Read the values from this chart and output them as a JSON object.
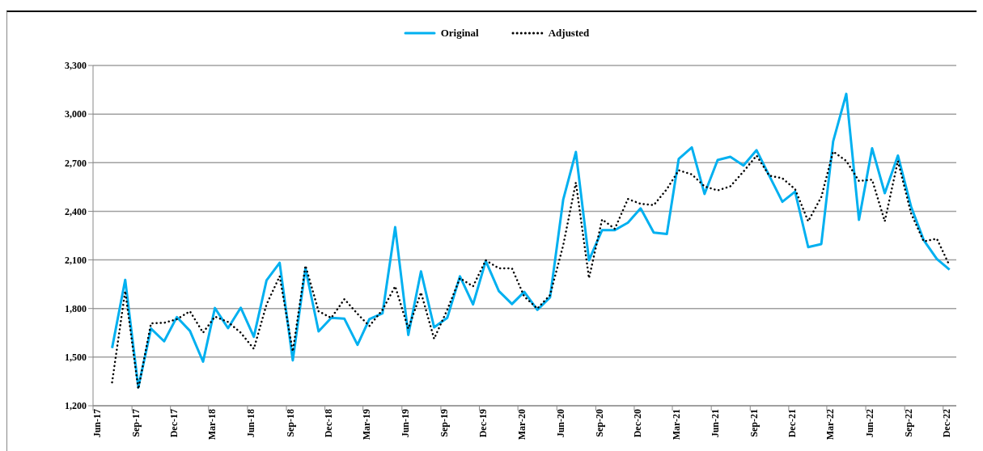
{
  "chart_data": {
    "type": "line",
    "x": [
      "2017-07-16",
      "2017-08-16",
      "2017-09-16",
      "2017-10-16",
      "2017-11-16",
      "2017-12-16",
      "2018-01-16",
      "2018-02-16",
      "2018-03-16",
      "2018-04-16",
      "2018-05-16",
      "2018-06-16",
      "2018-07-16",
      "2018-08-16",
      "2018-09-16",
      "2018-10-16",
      "2018-11-16",
      "2018-12-16",
      "2019-01-16",
      "2019-02-16",
      "2019-03-16",
      "2019-04-16",
      "2019-05-16",
      "2019-06-16",
      "2019-07-16",
      "2019-08-16",
      "2019-09-16",
      "2019-10-16",
      "2019-11-16",
      "2019-12-16",
      "2020-01-16",
      "2020-02-16",
      "2020-03-16",
      "2020-04-16",
      "2020-05-16",
      "2020-06-16",
      "2020-07-16",
      "2020-08-16",
      "2020-09-16",
      "2020-10-16",
      "2020-11-16",
      "2020-12-16",
      "2021-01-16",
      "2021-02-16",
      "2021-03-16",
      "2021-04-16",
      "2021-05-16",
      "2021-06-16",
      "2021-07-16",
      "2021-08-16",
      "2021-09-16",
      "2021-10-16",
      "2021-11-16",
      "2021-12-16",
      "2022-01-16",
      "2022-02-16",
      "2022-03-16",
      "2022-04-16",
      "2022-05-16",
      "2022-06-16",
      "2022-07-16",
      "2022-08-16",
      "2022-09-16",
      "2022-10-16",
      "2022-11-16",
      "2022-12-16"
    ],
    "series": [
      {
        "name": "Original",
        "color": "#00b0f0",
        "line_style": "solid",
        "values": [
          1556,
          1977,
          1314,
          1676,
          1598,
          1747,
          1662,
          1472,
          1803,
          1679,
          1805,
          1626,
          1974,
          2082,
          1480,
          2048,
          1659,
          1742,
          1737,
          1576,
          1734,
          1770,
          2302,
          1637,
          2029,
          1684,
          1742,
          1999,
          1825,
          2093,
          1908,
          1828,
          1903,
          1792,
          1869,
          2471,
          2766,
          2098,
          2284,
          2284,
          2330,
          2418,
          2269,
          2260,
          2723,
          2794,
          2507,
          2716,
          2736,
          2683,
          2777,
          2620,
          2459,
          2521,
          2179,
          2198,
          2832,
          3125,
          2347,
          2789,
          2512,
          2744,
          2430,
          2222,
          2106,
          2040
        ]
      },
      {
        "name": "Adjusted",
        "color": "#000000",
        "line_style": "dotted",
        "values": [
          1344,
          1908,
          1303,
          1709,
          1712,
          1734,
          1783,
          1651,
          1750,
          1717,
          1651,
          1551,
          1825,
          1999,
          1535,
          2065,
          1783,
          1742,
          1858,
          1767,
          1692,
          1792,
          1937,
          1676,
          1899,
          1613,
          1792,
          1987,
          1937,
          2098,
          2048,
          2048,
          1874,
          1800,
          1883,
          2189,
          2578,
          1987,
          2350,
          2292,
          2476,
          2446,
          2438,
          2537,
          2653,
          2628,
          2554,
          2529,
          2554,
          2645,
          2744,
          2620,
          2604,
          2537,
          2338,
          2488,
          2769,
          2711,
          2587,
          2595,
          2338,
          2711,
          2388,
          2214,
          2231,
          2065
        ]
      }
    ],
    "xlim": [
      "2017-06-01",
      "2023-01-01"
    ],
    "xticks": [
      {
        "value": "2017-06-01",
        "label": "Jun-17"
      },
      {
        "value": "2017-09-01",
        "label": "Sep-17"
      },
      {
        "value": "2017-12-01",
        "label": "Dec-17"
      },
      {
        "value": "2018-03-01",
        "label": "Mar-18"
      },
      {
        "value": "2018-06-01",
        "label": "Jun-18"
      },
      {
        "value": "2018-09-01",
        "label": "Sep-18"
      },
      {
        "value": "2018-12-01",
        "label": "Dec-18"
      },
      {
        "value": "2019-03-01",
        "label": "Mar-19"
      },
      {
        "value": "2019-06-01",
        "label": "Jun-19"
      },
      {
        "value": "2019-09-01",
        "label": "Sep-19"
      },
      {
        "value": "2019-12-01",
        "label": "Dec-19"
      },
      {
        "value": "2020-03-01",
        "label": "Mar-20"
      },
      {
        "value": "2020-06-01",
        "label": "Jun-20"
      },
      {
        "value": "2020-09-01",
        "label": "Sep-20"
      },
      {
        "value": "2020-12-01",
        "label": "Dec-20"
      },
      {
        "value": "2021-03-01",
        "label": "Mar-21"
      },
      {
        "value": "2021-06-01",
        "label": "Jun-21"
      },
      {
        "value": "2021-09-01",
        "label": "Sep-21"
      },
      {
        "value": "2021-12-01",
        "label": "Dec-21"
      },
      {
        "value": "2022-03-01",
        "label": "Mar-22"
      },
      {
        "value": "2022-06-01",
        "label": "Jun-22"
      },
      {
        "value": "2022-09-01",
        "label": "Sep-22"
      },
      {
        "value": "2022-12-01",
        "label": "Dec-22"
      }
    ],
    "ylim": [
      1200,
      3300
    ],
    "yticks": [
      {
        "value": 1200,
        "label": "1,200"
      },
      {
        "value": 1500,
        "label": "1,500"
      },
      {
        "value": 1800,
        "label": "1,800"
      },
      {
        "value": 2100,
        "label": "2,100"
      },
      {
        "value": 2400,
        "label": "2,400"
      },
      {
        "value": 2700,
        "label": "2,700"
      },
      {
        "value": 3000,
        "label": "3,000"
      },
      {
        "value": 3300,
        "label": "3,300"
      }
    ],
    "grid": "y",
    "legend": "top",
    "marker": "none"
  }
}
